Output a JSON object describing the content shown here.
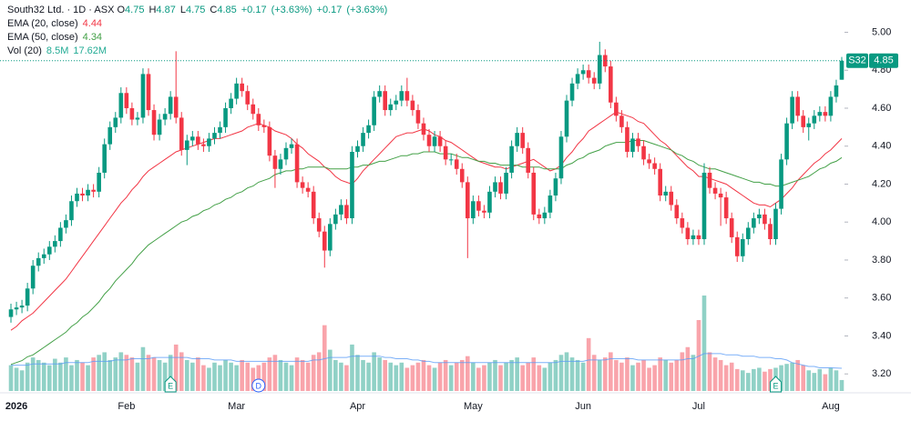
{
  "chart_data": {
    "type": "candlestick",
    "symbol": "S32",
    "legend": {
      "title": "South32 Ltd. · 1D · ASX",
      "o": "O",
      "h": "H",
      "l": "L",
      "c": "C",
      "changes": [
        {
          "value": 0.17,
          "label": "+0.17"
        },
        {
          "value": 3.63,
          "label": "(+3.63%)"
        },
        {
          "value": 0.17,
          "label": "+0.17"
        },
        {
          "value": 3.63,
          "label": "(+3.63%)"
        }
      ]
    },
    "up_color": "#089981",
    "down_color": "#f23645",
    "categories": [
      null,
      "2026",
      null,
      null,
      null,
      null,
      null,
      null,
      null,
      null,
      null,
      null,
      null,
      null,
      null,
      null,
      null,
      null,
      null,
      null,
      null,
      "Feb",
      null,
      null,
      null,
      null,
      null,
      null,
      null,
      null,
      null,
      null,
      null,
      null,
      null,
      null,
      null,
      null,
      null,
      null,
      null,
      "Mar",
      null,
      null,
      null,
      null,
      null,
      null,
      null,
      null,
      null,
      null,
      null,
      null,
      null,
      null,
      null,
      null,
      null,
      null,
      null,
      null,
      null,
      "Apr",
      null,
      null,
      null,
      null,
      null,
      null,
      null,
      null,
      null,
      null,
      null,
      null,
      null,
      null,
      null,
      null,
      null,
      null,
      null,
      null,
      "May",
      null,
      null,
      null,
      null,
      null,
      null,
      null,
      null,
      null,
      null,
      null,
      null,
      null,
      null,
      null,
      null,
      null,
      null,
      null,
      "Jun",
      null,
      null,
      null,
      null,
      null,
      null,
      null,
      null,
      null,
      null,
      null,
      null,
      null,
      null,
      null,
      null,
      null,
      null,
      null,
      null,
      "Jul",
      null,
      null,
      null,
      null,
      null,
      null,
      null,
      null,
      null,
      null,
      null,
      null,
      null,
      null,
      null,
      null,
      null,
      null,
      null,
      null,
      null,
      null,
      null,
      "Aug",
      null,
      null
    ],
    "open": [
      3.5,
      3.54,
      3.55,
      3.56,
      3.65,
      3.77,
      3.81,
      3.83,
      3.87,
      3.9,
      3.97,
      4.01,
      4.11,
      4.15,
      4.14,
      4.17,
      4.16,
      4.26,
      4.41,
      4.5,
      4.55,
      4.68,
      4.6,
      4.54,
      4.55,
      4.78,
      4.59,
      4.46,
      4.54,
      4.57,
      4.66,
      4.55,
      4.38,
      4.43,
      4.45,
      4.41,
      4.4,
      4.44,
      4.47,
      4.5,
      4.6,
      4.65,
      4.73,
      4.69,
      4.62,
      4.57,
      4.51,
      4.5,
      4.35,
      4.28,
      4.33,
      4.39,
      4.41,
      4.21,
      4.18,
      4.16,
      4.02,
      3.95,
      3.85,
      3.99,
      4.04,
      4.09,
      4.02,
      4.37,
      4.4,
      4.47,
      4.51,
      4.66,
      4.69,
      4.59,
      4.62,
      4.64,
      4.69,
      4.64,
      4.59,
      4.52,
      4.46,
      4.4,
      4.45,
      4.4,
      4.33,
      4.33,
      4.28,
      4.21,
      4.02,
      4.11,
      4.06,
      4.05,
      4.16,
      4.21,
      4.15,
      4.26,
      4.4,
      4.47,
      4.39,
      4.26,
      4.04,
      4.02,
      4.05,
      4.14,
      4.23,
      4.45,
      4.64,
      4.73,
      4.78,
      4.8,
      4.76,
      4.73,
      4.88,
      4.82,
      4.63,
      4.56,
      4.5,
      4.37,
      4.44,
      4.4,
      4.33,
      4.31,
      4.28,
      4.14,
      4.16,
      4.09,
      4.02,
      3.97,
      3.91,
      3.93,
      3.91,
      4.26,
      4.18,
      4.15,
      4.13,
      4.02,
      3.92,
      3.82,
      3.91,
      3.97,
      4.02,
      4.04,
      3.99,
      3.91,
      4.07,
      4.33,
      4.52,
      4.66,
      4.56,
      4.5,
      4.52,
      4.56,
      4.58,
      4.56,
      4.66,
      4.75
    ],
    "high": [
      3.57,
      3.58,
      3.59,
      3.68,
      3.8,
      3.84,
      3.86,
      3.9,
      3.93,
      4.0,
      4.04,
      4.14,
      4.18,
      4.18,
      4.2,
      4.2,
      4.29,
      4.44,
      4.53,
      4.58,
      4.71,
      4.71,
      4.63,
      4.58,
      4.81,
      4.81,
      4.62,
      4.57,
      4.6,
      4.69,
      4.9,
      4.58,
      4.46,
      4.48,
      4.48,
      4.44,
      4.47,
      4.5,
      4.53,
      4.63,
      4.68,
      4.76,
      4.76,
      4.72,
      4.65,
      4.6,
      4.54,
      4.53,
      4.38,
      4.36,
      4.42,
      4.44,
      4.44,
      4.24,
      4.21,
      4.19,
      4.05,
      3.98,
      4.02,
      4.07,
      4.12,
      4.12,
      4.4,
      4.43,
      4.5,
      4.54,
      4.69,
      4.72,
      4.72,
      4.65,
      4.67,
      4.72,
      4.76,
      4.67,
      4.62,
      4.55,
      4.49,
      4.48,
      4.48,
      4.43,
      4.36,
      4.36,
      4.31,
      4.24,
      4.14,
      4.14,
      4.09,
      4.19,
      4.24,
      4.24,
      4.29,
      4.43,
      4.5,
      4.5,
      4.42,
      4.29,
      4.07,
      4.08,
      4.17,
      4.26,
      4.48,
      4.67,
      4.76,
      4.81,
      4.83,
      4.83,
      4.79,
      4.95,
      4.91,
      4.85,
      4.66,
      4.59,
      4.53,
      4.47,
      4.47,
      4.43,
      4.36,
      4.34,
      4.31,
      4.19,
      4.19,
      4.12,
      4.05,
      4.0,
      3.96,
      3.96,
      4.31,
      4.29,
      4.21,
      4.18,
      4.16,
      4.05,
      3.95,
      3.94,
      4.0,
      4.05,
      4.07,
      4.07,
      4.02,
      4.1,
      4.36,
      4.55,
      4.69,
      4.69,
      4.59,
      4.55,
      4.59,
      4.61,
      4.61,
      4.69,
      4.75,
      4.87
    ],
    "low": [
      3.47,
      3.51,
      3.52,
      3.53,
      3.62,
      3.74,
      3.78,
      3.8,
      3.84,
      3.87,
      3.94,
      3.98,
      4.08,
      4.11,
      4.11,
      4.13,
      4.13,
      4.23,
      4.38,
      4.47,
      4.52,
      4.57,
      4.51,
      4.51,
      4.52,
      4.56,
      4.43,
      4.43,
      4.51,
      4.54,
      4.52,
      4.35,
      4.3,
      4.4,
      4.38,
      4.37,
      4.37,
      4.41,
      4.44,
      4.47,
      4.57,
      4.62,
      4.66,
      4.59,
      4.54,
      4.48,
      4.47,
      4.32,
      4.18,
      4.25,
      4.3,
      4.36,
      4.18,
      4.15,
      4.13,
      3.99,
      3.92,
      3.76,
      3.82,
      3.96,
      4.01,
      3.99,
      3.99,
      4.34,
      4.37,
      4.44,
      4.48,
      4.63,
      4.56,
      4.56,
      4.59,
      4.61,
      4.61,
      4.56,
      4.49,
      4.43,
      4.37,
      4.37,
      4.37,
      4.3,
      4.3,
      4.25,
      4.18,
      3.81,
      3.99,
      4.03,
      4.02,
      4.02,
      4.13,
      4.12,
      4.12,
      4.23,
      4.37,
      4.36,
      4.23,
      4.01,
      3.99,
      3.99,
      4.02,
      4.11,
      4.2,
      4.42,
      4.61,
      4.7,
      4.75,
      4.73,
      4.7,
      4.7,
      4.79,
      4.6,
      4.53,
      4.47,
      4.34,
      4.34,
      4.37,
      4.3,
      4.28,
      4.25,
      4.11,
      4.11,
      4.06,
      3.99,
      3.94,
      3.88,
      3.88,
      3.88,
      3.88,
      4.15,
      4.12,
      3.98,
      3.99,
      3.89,
      3.79,
      3.79,
      3.88,
      3.94,
      3.99,
      3.96,
      3.88,
      3.88,
      4.04,
      4.3,
      4.49,
      4.53,
      4.47,
      4.43,
      4.49,
      4.53,
      4.53,
      4.53,
      4.63,
      4.75
    ],
    "close": [
      3.54,
      3.55,
      3.56,
      3.65,
      3.77,
      3.81,
      3.83,
      3.87,
      3.9,
      3.97,
      4.01,
      4.11,
      4.15,
      4.14,
      4.17,
      4.16,
      4.26,
      4.41,
      4.5,
      4.55,
      4.68,
      4.6,
      4.54,
      4.55,
      4.78,
      4.59,
      4.46,
      4.54,
      4.57,
      4.66,
      4.55,
      4.38,
      4.43,
      4.45,
      4.41,
      4.4,
      4.44,
      4.47,
      4.5,
      4.6,
      4.65,
      4.73,
      4.69,
      4.62,
      4.57,
      4.51,
      4.5,
      4.35,
      4.28,
      4.33,
      4.39,
      4.41,
      4.21,
      4.18,
      4.16,
      4.02,
      3.95,
      3.85,
      3.99,
      4.04,
      4.09,
      4.02,
      4.37,
      4.4,
      4.47,
      4.51,
      4.66,
      4.69,
      4.59,
      4.62,
      4.64,
      4.69,
      4.64,
      4.59,
      4.52,
      4.46,
      4.4,
      4.45,
      4.4,
      4.33,
      4.33,
      4.28,
      4.21,
      4.02,
      4.11,
      4.06,
      4.05,
      4.16,
      4.21,
      4.15,
      4.26,
      4.4,
      4.47,
      4.39,
      4.26,
      4.04,
      4.02,
      4.05,
      4.14,
      4.23,
      4.45,
      4.64,
      4.73,
      4.78,
      4.8,
      4.76,
      4.73,
      4.88,
      4.82,
      4.63,
      4.56,
      4.5,
      4.37,
      4.44,
      4.4,
      4.33,
      4.31,
      4.28,
      4.14,
      4.16,
      4.09,
      4.02,
      3.97,
      3.91,
      3.93,
      3.91,
      4.26,
      4.18,
      4.15,
      4.13,
      4.02,
      3.92,
      3.82,
      3.91,
      3.97,
      4.02,
      4.04,
      3.99,
      3.91,
      4.07,
      4.33,
      4.52,
      4.66,
      4.56,
      4.5,
      4.52,
      4.56,
      4.58,
      4.56,
      4.66,
      4.72,
      4.85
    ],
    "series": [
      {
        "name": "EMA (20, close)",
        "color": "#f23645",
        "values": [
          3.43,
          3.45,
          3.48,
          3.5,
          3.52,
          3.55,
          3.58,
          3.61,
          3.64,
          3.67,
          3.7,
          3.74,
          3.78,
          3.82,
          3.86,
          3.9,
          3.94,
          3.98,
          4.02,
          4.06,
          4.1,
          4.13,
          4.17,
          4.2,
          4.24,
          4.27,
          4.29,
          4.31,
          4.33,
          4.35,
          4.37,
          4.38,
          4.39,
          4.4,
          4.41,
          4.42,
          4.43,
          4.44,
          4.44,
          4.45,
          4.46,
          4.47,
          4.48,
          4.5,
          4.51,
          4.52,
          4.51,
          4.5,
          4.48,
          4.47,
          4.46,
          4.44,
          4.41,
          4.39,
          4.36,
          4.34,
          4.32,
          4.29,
          4.27,
          4.24,
          4.22,
          4.21,
          4.2,
          4.23,
          4.27,
          4.3,
          4.33,
          4.36,
          4.39,
          4.42,
          4.45,
          4.46,
          4.47,
          4.47,
          4.48,
          4.49,
          4.48,
          4.46,
          4.45,
          4.43,
          4.42,
          4.4,
          4.38,
          4.36,
          4.34,
          4.32,
          4.31,
          4.3,
          4.29,
          4.29,
          4.28,
          4.29,
          4.3,
          4.31,
          4.32,
          4.33,
          4.31,
          4.29,
          4.27,
          4.28,
          4.3,
          4.34,
          4.37,
          4.41,
          4.44,
          4.48,
          4.5,
          4.52,
          4.54,
          4.56,
          4.58,
          4.57,
          4.56,
          4.55,
          4.53,
          4.52,
          4.49,
          4.46,
          4.43,
          4.41,
          4.38,
          4.35,
          4.32,
          4.29,
          4.27,
          4.24,
          4.24,
          4.23,
          4.22,
          4.21,
          4.2,
          4.18,
          4.16,
          4.14,
          4.12,
          4.1,
          4.09,
          4.09,
          4.08,
          4.1,
          4.12,
          4.15,
          4.18,
          4.22,
          4.25,
          4.28,
          4.31,
          4.33,
          4.36,
          4.38,
          4.41,
          4.44
        ]
      },
      {
        "name": "EMA (50, close)",
        "color": "#43a047",
        "values": [
          3.25,
          3.26,
          3.27,
          3.29,
          3.3,
          3.32,
          3.34,
          3.36,
          3.38,
          3.4,
          3.42,
          3.45,
          3.47,
          3.5,
          3.52,
          3.55,
          3.58,
          3.62,
          3.65,
          3.69,
          3.72,
          3.75,
          3.78,
          3.82,
          3.85,
          3.88,
          3.9,
          3.92,
          3.94,
          3.96,
          3.98,
          4.0,
          4.01,
          4.03,
          4.04,
          4.06,
          4.07,
          4.09,
          4.1,
          4.12,
          4.13,
          4.15,
          4.16,
          4.18,
          4.19,
          4.21,
          4.22,
          4.23,
          4.25,
          4.26,
          4.27,
          4.27,
          4.28,
          4.28,
          4.29,
          4.29,
          4.29,
          4.29,
          4.28,
          4.28,
          4.28,
          4.28,
          4.29,
          4.29,
          4.3,
          4.3,
          4.31,
          4.32,
          4.32,
          4.33,
          4.34,
          4.35,
          4.35,
          4.36,
          4.36,
          4.37,
          4.37,
          4.37,
          4.36,
          4.36,
          4.36,
          4.35,
          4.34,
          4.34,
          4.33,
          4.32,
          4.32,
          4.31,
          4.31,
          4.3,
          4.3,
          4.3,
          4.3,
          4.29,
          4.29,
          4.29,
          4.29,
          4.28,
          4.28,
          4.28,
          4.28,
          4.3,
          4.31,
          4.33,
          4.34,
          4.36,
          4.37,
          4.38,
          4.4,
          4.41,
          4.42,
          4.42,
          4.42,
          4.43,
          4.43,
          4.43,
          4.42,
          4.41,
          4.4,
          4.39,
          4.38,
          4.36,
          4.35,
          4.33,
          4.32,
          4.3,
          4.29,
          4.28,
          4.28,
          4.27,
          4.26,
          4.25,
          4.24,
          4.23,
          4.22,
          4.21,
          4.21,
          4.2,
          4.2,
          4.19,
          4.19,
          4.2,
          4.21,
          4.22,
          4.23,
          4.24,
          4.26,
          4.28,
          4.29,
          4.31,
          4.32,
          4.34
        ]
      }
    ],
    "volume": {
      "name": "Vol (20)",
      "values": [
        20,
        18,
        16,
        22,
        26,
        24,
        22,
        20,
        25,
        22,
        26,
        20,
        24,
        22,
        20,
        26,
        28,
        30,
        24,
        26,
        30,
        28,
        26,
        22,
        34,
        28,
        26,
        24,
        22,
        28,
        36,
        30,
        24,
        22,
        26,
        20,
        18,
        22,
        20,
        24,
        22,
        20,
        24,
        22,
        18,
        20,
        22,
        26,
        28,
        24,
        22,
        20,
        26,
        24,
        22,
        28,
        30,
        51,
        32,
        24,
        22,
        20,
        36,
        28,
        24,
        22,
        30,
        26,
        24,
        22,
        20,
        22,
        18,
        20,
        22,
        24,
        20,
        18,
        22,
        24,
        20,
        22,
        24,
        27,
        22,
        18,
        20,
        22,
        24,
        20,
        22,
        24,
        26,
        20,
        22,
        26,
        20,
        18,
        22,
        24,
        28,
        30,
        26,
        24,
        22,
        41,
        28,
        24,
        26,
        30,
        24,
        22,
        26,
        20,
        22,
        24,
        18,
        20,
        26,
        24,
        22,
        24,
        30,
        34,
        28,
        55,
        74,
        30,
        26,
        24,
        20,
        22,
        17,
        16,
        14,
        17,
        18,
        15,
        17,
        18,
        20,
        21,
        22,
        24,
        20,
        16,
        14,
        17,
        13,
        18,
        16,
        8.5
      ],
      "last_label": "8.5M",
      "ma_color": "#5b9cf6",
      "ma_values": [
        20,
        20,
        20,
        20,
        21,
        21,
        21,
        21,
        21,
        21,
        22,
        22,
        22,
        22,
        22,
        23,
        23,
        23,
        23,
        24,
        24,
        24,
        25,
        25,
        25,
        25,
        26,
        26,
        26,
        26,
        26,
        26,
        26,
        25,
        25,
        25,
        25,
        24,
        24,
        24,
        24,
        23,
        23,
        23,
        23,
        23,
        23,
        23,
        23,
        23,
        23,
        23,
        23,
        23,
        23,
        24,
        24,
        25,
        26,
        26,
        26,
        26,
        27,
        27,
        27,
        27,
        27,
        27,
        26,
        26,
        25,
        25,
        25,
        24,
        24,
        23,
        23,
        22,
        22,
        22,
        22,
        22,
        22,
        22,
        22,
        22,
        22,
        22,
        22,
        22,
        22,
        22,
        22,
        22,
        22,
        22,
        22,
        22,
        22,
        22,
        23,
        23,
        23,
        23,
        23,
        24,
        24,
        24,
        24,
        25,
        25,
        25,
        25,
        25,
        24,
        24,
        24,
        24,
        24,
        24,
        24,
        24,
        24,
        25,
        25,
        27,
        29,
        29,
        29,
        29,
        28,
        28,
        28,
        27,
        27,
        27,
        26,
        26,
        26,
        25,
        25,
        24,
        22,
        21,
        20,
        19,
        19,
        18,
        18,
        18,
        17.8,
        17.62
      ],
      "ma_last_label": "17.62M"
    },
    "events": [
      {
        "label": "E",
        "bar": 29
      },
      {
        "label": "D",
        "bar": 45
      },
      {
        "label": "E",
        "bar": 139
      }
    ],
    "ylim": [
      3.11,
      5.17
    ],
    "yticks": [
      {
        "value": 3.2,
        "label": "3.20"
      },
      {
        "value": 3.4,
        "label": "3.40"
      },
      {
        "value": 3.6,
        "label": "3.60"
      },
      {
        "value": 3.8,
        "label": "3.80"
      },
      {
        "value": 4.0,
        "label": "4.00"
      },
      {
        "value": 4.2,
        "label": "4.20"
      },
      {
        "value": 4.4,
        "label": "4.40"
      },
      {
        "value": 4.6,
        "label": "4.60"
      },
      {
        "value": 4.8,
        "label": "4.80"
      },
      {
        "value": 5.0,
        "label": "5.00"
      }
    ],
    "grid": false
  }
}
